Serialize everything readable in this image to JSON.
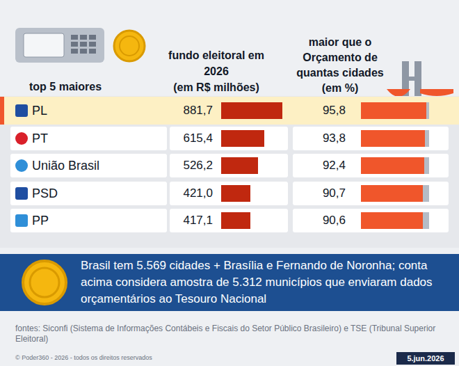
{
  "header": {
    "row_label_title": "top 5 maiores"
  },
  "chart_data": [
    {
      "type": "bar",
      "orientation": "horizontal",
      "title": "fundo eleitoral em 2026 (em R$ milhões)",
      "categories": [
        "PL",
        "PT",
        "União Brasil",
        "PSD",
        "PP"
      ],
      "values": [
        881.7,
        615.4,
        526.2,
        421.0,
        417.1
      ],
      "value_labels": [
        "881,7",
        "615,4",
        "526,2",
        "421,0",
        "417,1"
      ],
      "color": "#c0280f",
      "xlim": [
        0,
        900
      ],
      "data_labels": true,
      "tick_labels": "y"
    },
    {
      "type": "bar",
      "orientation": "horizontal",
      "title": "maior que o Orçamento de quantas cidades (em %)",
      "values": [
        95.8,
        93.8,
        92.4,
        90.7,
        90.6
      ],
      "value_labels": [
        "95,8",
        "93,8",
        "92,4",
        "90,7",
        "90,6"
      ],
      "color": "#f0562b",
      "xlim": [
        0,
        100
      ],
      "data_labels": true,
      "tick_labels": false
    }
  ],
  "note": "Brasil tem 5.569 cidades + Brasília e Fernando de Noronha; conta acima considera amostra de 5.312 municípios que enviaram dados orçamentários ao Tesouro Nacional",
  "sources": "fontes: Siconfi (Sistema de Informações Contábeis e Fiscais do Setor Público Brasileiro) e TSE (Tribunal Superior Eleitoral)",
  "copyright": "© Poder360 - 2026 - todos os direitos reservados",
  "date": "5.jun.2026"
}
